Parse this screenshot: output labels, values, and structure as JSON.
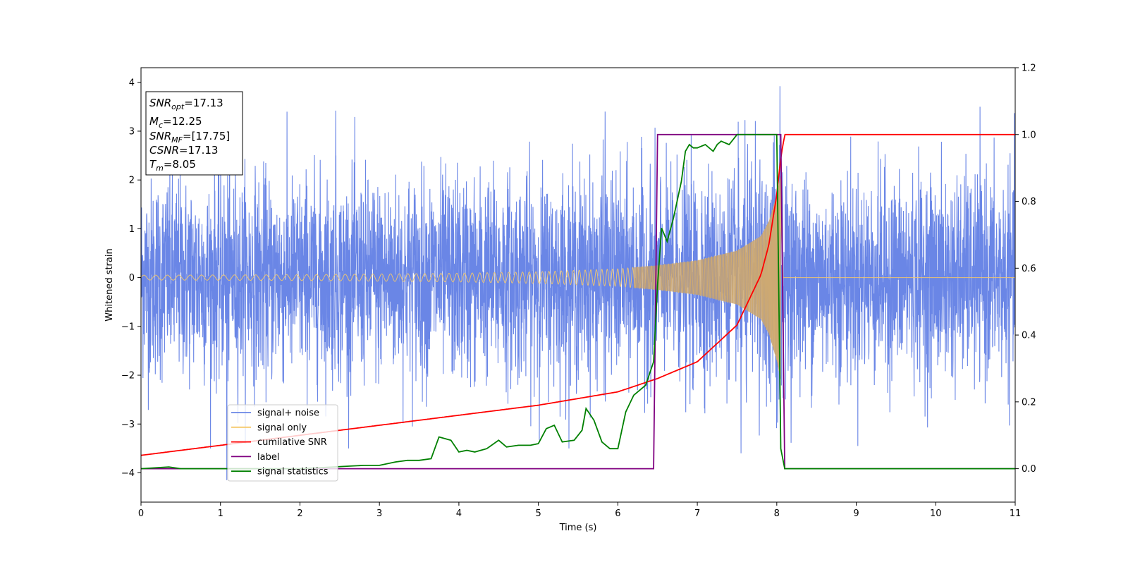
{
  "chart_data": {
    "type": "line",
    "title": "",
    "xlabel": "Time (s)",
    "ylabel": "Whitened strain",
    "y2label": "",
    "xlim": [
      0,
      11
    ],
    "ylim": [
      -4.6,
      4.3
    ],
    "y2lim": [
      -0.1,
      1.2
    ],
    "xticks": [
      0,
      1,
      2,
      3,
      4,
      5,
      6,
      7,
      8,
      9,
      10,
      11
    ],
    "yticks": [
      -4,
      -3,
      -2,
      -1,
      0,
      1,
      2,
      3,
      4
    ],
    "y2ticks": [
      0.0,
      0.2,
      0.4,
      0.6,
      0.8,
      1.0,
      1.2
    ],
    "grid": false,
    "legend_position": "lower-left",
    "colors": {
      "noise": "#6a86e6",
      "signal": "#f5c96a",
      "signal_fill": "#c4a070",
      "csnr": "#ff0000",
      "label": "#800080",
      "stat": "#008000"
    },
    "annotation": {
      "lines": [
        {
          "sym": "SNR",
          "sub": "opt",
          "val": "=17.13"
        },
        {
          "sym": "M",
          "sub": "c",
          "val": "=12.25"
        },
        {
          "sym": "SNR",
          "sub": "MF",
          "val": "=[17.75]"
        },
        {
          "sym": "CSNR",
          "sub": "",
          "val": "=17.13"
        },
        {
          "sym": "T",
          "sub": "m",
          "val": "=8.05"
        }
      ]
    },
    "series": [
      {
        "name": "signal+ noise",
        "axis": "left",
        "kind": "whitened noise + signal",
        "x_range": [
          0,
          11
        ],
        "approx_amplitude": 1.2,
        "extremes": [
          [
            1.08,
            -4.15
          ],
          [
            2.45,
            3.42
          ],
          [
            5.84,
            3.4
          ],
          [
            7.55,
            -3.6
          ],
          [
            8.04,
            3.92
          ]
        ]
      },
      {
        "name": "signal only",
        "axis": "left",
        "kind": "chirp",
        "x_range": [
          0,
          8.05
        ],
        "amplitude_points": [
          [
            0,
            0.05
          ],
          [
            2,
            0.06
          ],
          [
            4,
            0.09
          ],
          [
            5,
            0.12
          ],
          [
            6,
            0.18
          ],
          [
            6.5,
            0.25
          ],
          [
            7,
            0.35
          ],
          [
            7.5,
            0.55
          ],
          [
            7.8,
            0.85
          ],
          [
            7.9,
            1.15
          ],
          [
            8.0,
            1.7
          ],
          [
            8.05,
            2.1
          ]
        ],
        "after_merger_value": 0
      },
      {
        "name": "cumilative SNR",
        "axis": "right",
        "x": [
          0,
          1,
          2,
          3,
          4,
          5,
          6,
          6.5,
          7,
          7.5,
          7.8,
          7.9,
          8.0,
          8.05,
          8.1,
          11
        ],
        "y": [
          0.04,
          0.07,
          0.1,
          0.13,
          0.16,
          0.19,
          0.23,
          0.27,
          0.32,
          0.43,
          0.58,
          0.67,
          0.82,
          0.93,
          1.0,
          1.0
        ]
      },
      {
        "name": "label",
        "axis": "right",
        "x": [
          0,
          6.45,
          6.5,
          8.05,
          8.1,
          11
        ],
        "y": [
          0,
          0,
          1,
          1,
          0,
          0
        ]
      },
      {
        "name": "signal statistics",
        "axis": "right",
        "x": [
          0,
          0.35,
          0.5,
          1,
          2,
          2.8,
          3.0,
          3.2,
          3.35,
          3.5,
          3.65,
          3.75,
          3.9,
          4.0,
          4.1,
          4.2,
          4.35,
          4.5,
          4.6,
          4.75,
          4.9,
          5.0,
          5.1,
          5.2,
          5.3,
          5.45,
          5.55,
          5.6,
          5.7,
          5.8,
          5.9,
          6.0,
          6.1,
          6.2,
          6.35,
          6.45,
          6.5,
          6.55,
          6.62,
          6.7,
          6.8,
          6.85,
          6.9,
          6.95,
          7.0,
          7.1,
          7.2,
          7.25,
          7.3,
          7.4,
          7.5,
          7.6,
          7.75,
          8.0,
          8.05,
          8.1,
          11
        ],
        "y": [
          0.0,
          0.005,
          0.0,
          0.0,
          0.0,
          0.01,
          0.01,
          0.02,
          0.025,
          0.025,
          0.03,
          0.095,
          0.085,
          0.05,
          0.055,
          0.05,
          0.06,
          0.085,
          0.065,
          0.07,
          0.07,
          0.075,
          0.12,
          0.13,
          0.08,
          0.085,
          0.115,
          0.18,
          0.145,
          0.08,
          0.06,
          0.06,
          0.17,
          0.22,
          0.25,
          0.32,
          0.55,
          0.72,
          0.68,
          0.75,
          0.86,
          0.95,
          0.97,
          0.96,
          0.96,
          0.97,
          0.95,
          0.97,
          0.98,
          0.97,
          1.0,
          1.0,
          1.0,
          1.0,
          0.06,
          0.0,
          0.0
        ]
      }
    ]
  }
}
